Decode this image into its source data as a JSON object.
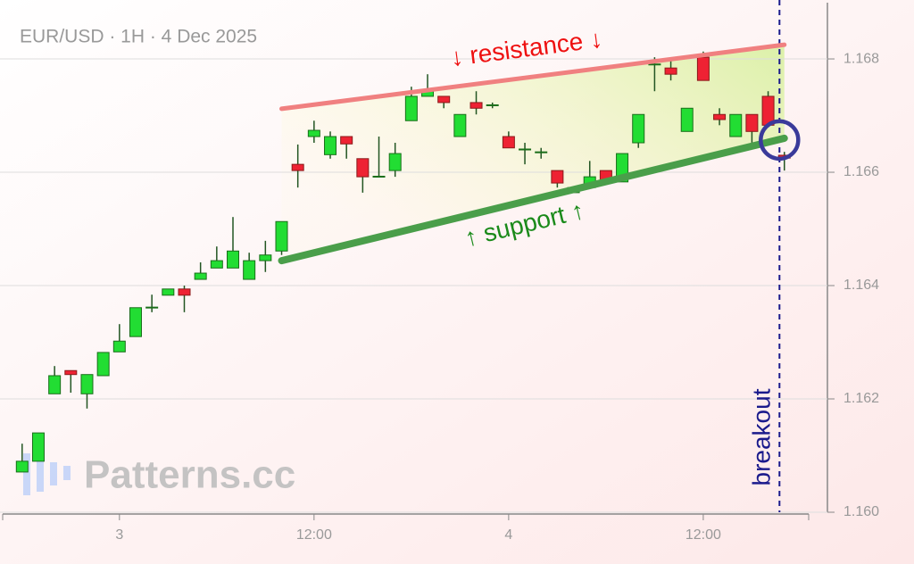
{
  "chart_data": {
    "type": "candlestick",
    "title": "EUR/USD · 1H · 4 Dec 2025",
    "watermark": "Patterns.cc",
    "x": [
      -6,
      -5,
      -4,
      -3,
      -2,
      -1,
      0,
      1,
      2,
      3,
      4,
      5,
      6,
      7,
      8,
      9,
      10,
      11,
      12,
      13,
      14,
      15,
      16,
      17,
      18,
      19,
      20,
      21,
      22,
      23,
      24,
      25,
      26,
      27,
      28,
      29,
      30,
      31,
      32,
      33,
      34,
      35,
      36,
      37,
      38,
      39,
      40,
      41
    ],
    "open": [
      1.16071,
      1.1609,
      1.16209,
      1.1625,
      1.16209,
      1.16241,
      1.16283,
      1.1631,
      1.16361,
      1.16383,
      1.16394,
      1.16411,
      1.16431,
      1.16431,
      1.16411,
      1.16444,
      1.16461,
      1.16614,
      1.16663,
      1.16631,
      1.16663,
      1.16624,
      1.16592,
      1.16603,
      1.16691,
      1.16734,
      1.16734,
      1.16663,
      1.16723,
      1.16718,
      1.16663,
      1.1664,
      1.16635,
      1.16603,
      1.16564,
      1.16573,
      1.16603,
      1.16583,
      1.16652,
      1.1679,
      1.16784,
      1.16672,
      1.16803,
      1.16702,
      1.16663,
      1.16702,
      1.16734,
      1.1663
    ],
    "high": [
      1.16121,
      1.1614,
      1.16258,
      1.1625,
      1.16243,
      1.16282,
      1.16332,
      1.16361,
      1.16384,
      1.16394,
      1.164,
      1.16441,
      1.16469,
      1.16521,
      1.16458,
      1.16479,
      1.16513,
      1.16649,
      1.16691,
      1.16672,
      1.16663,
      1.16624,
      1.16663,
      1.16652,
      1.16751,
      1.16773,
      1.16734,
      1.16702,
      1.16743,
      1.16723,
      1.16672,
      1.16652,
      1.16643,
      1.16603,
      1.16573,
      1.1662,
      1.16603,
      1.16633,
      1.16702,
      1.16803,
      1.168,
      1.16713,
      1.16813,
      1.16713,
      1.16702,
      1.16702,
      1.16743,
      1.16636
    ],
    "low": [
      1.16071,
      1.1609,
      1.16209,
      1.16211,
      1.16183,
      1.16241,
      1.16283,
      1.1631,
      1.16353,
      1.16383,
      1.16353,
      1.16411,
      1.16431,
      1.16431,
      1.16411,
      1.16424,
      1.16454,
      1.16573,
      1.16652,
      1.16624,
      1.16624,
      1.16564,
      1.16592,
      1.16592,
      1.16691,
      1.16734,
      1.16713,
      1.16663,
      1.16702,
      1.16713,
      1.16643,
      1.16614,
      1.16624,
      1.16573,
      1.16564,
      1.16573,
      1.16583,
      1.16583,
      1.16643,
      1.16743,
      1.16762,
      1.16672,
      1.16762,
      1.16683,
      1.16663,
      1.16643,
      1.16683,
      1.16603
    ],
    "close": [
      1.1609,
      1.1614,
      1.16241,
      1.16243,
      1.16243,
      1.16282,
      1.16302,
      1.16361,
      1.16362,
      1.16394,
      1.16383,
      1.16422,
      1.16444,
      1.16461,
      1.16444,
      1.16454,
      1.16513,
      1.16603,
      1.16674,
      1.16663,
      1.1665,
      1.16592,
      1.16593,
      1.16633,
      1.16734,
      1.16743,
      1.16723,
      1.16702,
      1.16713,
      1.16719,
      1.16643,
      1.16641,
      1.16636,
      1.16581,
      1.16573,
      1.16592,
      1.16583,
      1.16633,
      1.16702,
      1.16791,
      1.16773,
      1.16713,
      1.16762,
      1.16693,
      1.16702,
      1.16672,
      1.16683,
      1.16625
    ],
    "up_color": "#22dd33",
    "down_color": "#ee2233",
    "resistance": {
      "label": "↓ resistance ↓",
      "x": [
        10,
        41
      ],
      "y": [
        1.16712,
        1.16825
      ],
      "color": "#f08080"
    },
    "support": {
      "label": "↑ support ↑",
      "x": [
        10,
        41
      ],
      "y": [
        1.16444,
        1.1666
      ],
      "color": "#4a9e4a"
    },
    "breakout": {
      "label": "breakout",
      "x": 40.7,
      "y": 1.16657,
      "color": "#1a1a8c"
    },
    "xlim": [
      -7.2,
      42.5
    ],
    "ylim": [
      1.16,
      1.16904
    ],
    "xticks": [
      {
        "value": 0,
        "label": "3"
      },
      {
        "value": 12,
        "label": "12:00"
      },
      {
        "value": 24,
        "label": "4"
      },
      {
        "value": 36,
        "label": "12:00"
      }
    ],
    "yticks": [
      {
        "value": 1.16,
        "label": "1.160"
      },
      {
        "value": 1.162,
        "label": "1.162"
      },
      {
        "value": 1.164,
        "label": "1.164"
      },
      {
        "value": 1.166,
        "label": "1.166"
      },
      {
        "value": 1.168,
        "label": "1.168"
      }
    ],
    "grid": true
  }
}
